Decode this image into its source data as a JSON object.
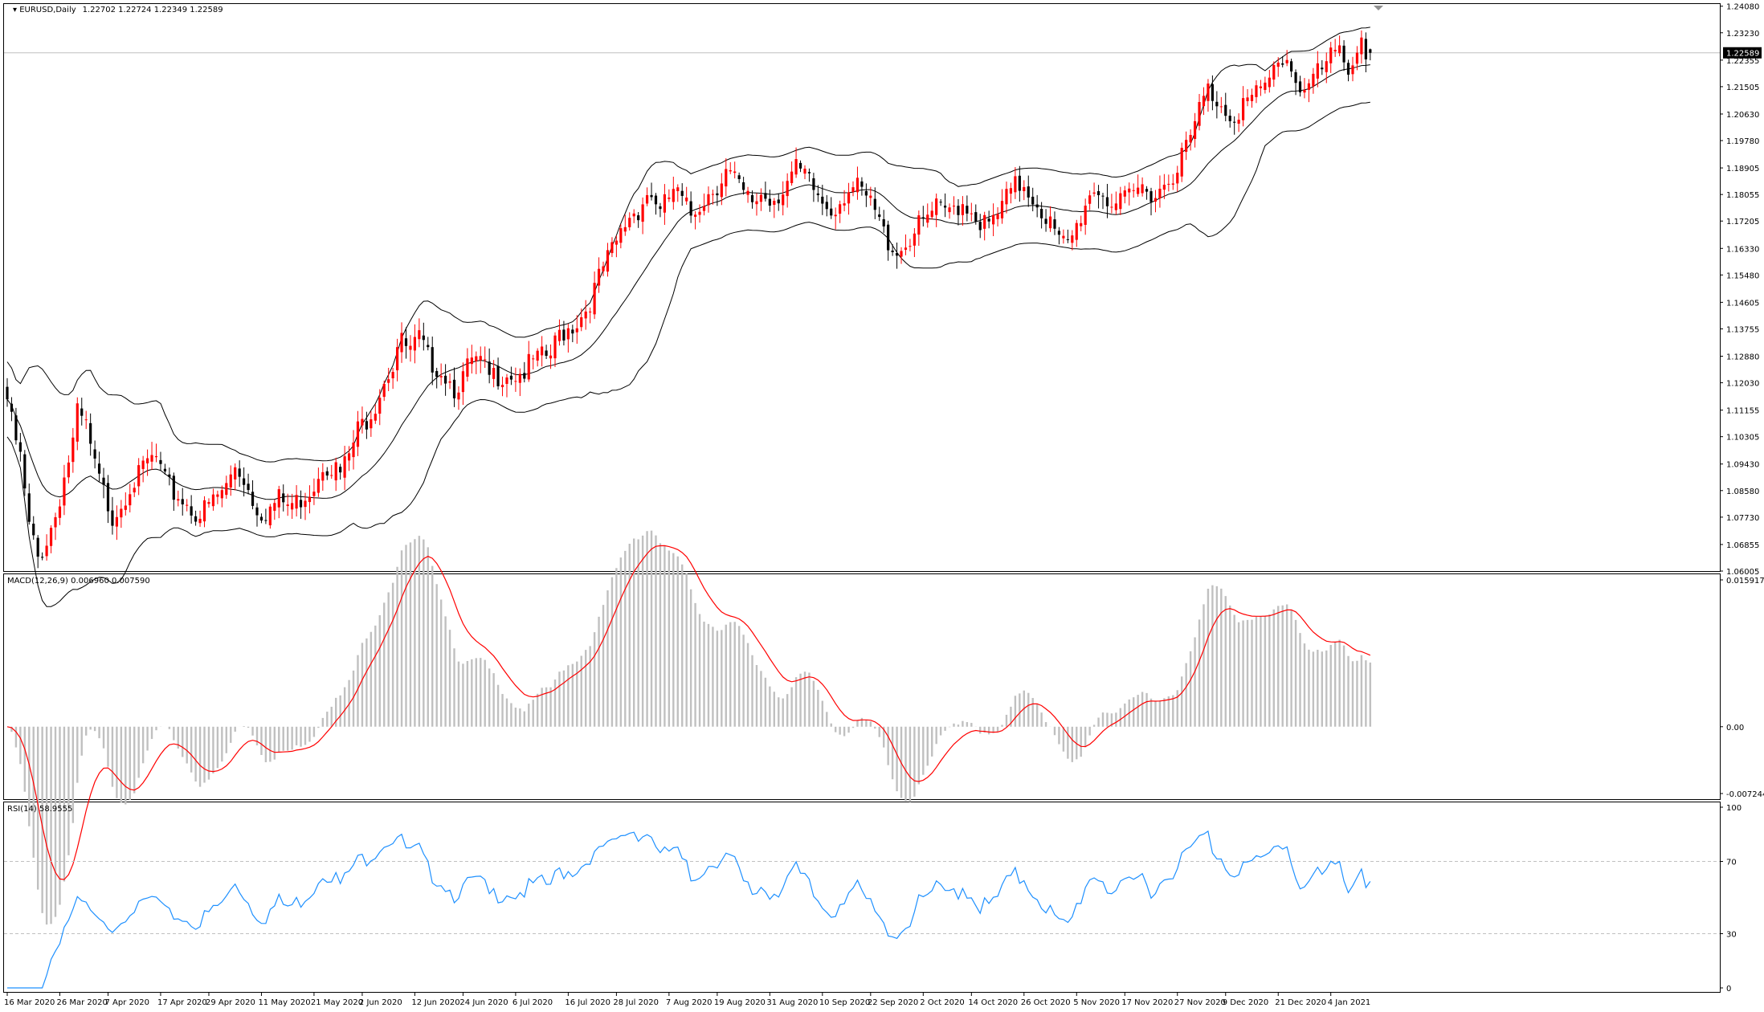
{
  "header": {
    "symbol": "EURUSD,Daily",
    "ohlc": "1.22702 1.22724 1.22349 1.22589"
  },
  "price_axis": {
    "labels": [
      "1.24080",
      "1.23230",
      "1.22355",
      "1.21505",
      "1.20630",
      "1.19780",
      "1.18905",
      "1.18055",
      "1.17205",
      "1.16330",
      "1.15480",
      "1.14605",
      "1.13755",
      "1.12880",
      "1.12030",
      "1.11155",
      "1.10305",
      "1.09430",
      "1.08580",
      "1.07730",
      "1.06855",
      "1.06005"
    ],
    "current_price_label": "1.22589"
  },
  "macd": {
    "title": "MACD(12,26,9) 0.006960 0.007590",
    "axis_labels": [
      "0.015917",
      "0.00",
      "-0.007244"
    ]
  },
  "rsi": {
    "title": "RSI(14) 58.9555",
    "axis_labels": [
      "100",
      "70",
      "30",
      "0"
    ]
  },
  "time_axis": {
    "labels": [
      "16 Mar 2020",
      "26 Mar 2020",
      "7 Apr 2020",
      "17 Apr 2020",
      "29 Apr 2020",
      "11 May 2020",
      "21 May 2020",
      "2 Jun 2020",
      "12 Jun 2020",
      "24 Jun 2020",
      "6 Jul 2020",
      "16 Jul 2020",
      "28 Jul 2020",
      "7 Aug 2020",
      "19 Aug 2020",
      "31 Aug 2020",
      "10 Sep 2020",
      "22 Sep 2020",
      "2 Oct 2020",
      "14 Oct 2020",
      "26 Oct 2020",
      "5 Nov 2020",
      "17 Nov 2020",
      "27 Nov 2020",
      "9 Dec 2020",
      "21 Dec 2020",
      "4 Jan 2021"
    ]
  },
  "colors": {
    "bull": "#ff0000",
    "bear": "#000000",
    "bands": "#000000",
    "histogram": "#c0c0c0",
    "macd_signal": "#ff0000",
    "rsi_line": "#1e90ff",
    "level_lines": "#c0c0c0",
    "current_price_line": "#c0c0c0"
  },
  "chart_data": [
    {
      "type": "candlestick",
      "title": "EURUSD,Daily",
      "ylim": [
        1.06005,
        1.2415
      ],
      "close_anchors": [
        [
          0,
          1.115
        ],
        [
          3,
          1.098
        ],
        [
          5,
          1.076
        ],
        [
          7,
          1.066
        ],
        [
          9,
          1.072
        ],
        [
          11,
          1.08
        ],
        [
          13,
          1.092
        ],
        [
          15,
          1.103
        ],
        [
          16,
          1.112
        ],
        [
          18,
          1.108
        ],
        [
          20,
          1.095
        ],
        [
          22,
          1.087
        ],
        [
          24,
          1.08
        ],
        [
          26,
          1.084
        ],
        [
          28,
          1.09
        ],
        [
          30,
          1.092
        ],
        [
          32,
          1.097
        ],
        [
          34,
          1.098
        ],
        [
          36,
          1.09
        ],
        [
          38,
          1.087
        ],
        [
          40,
          1.085
        ],
        [
          42,
          1.082
        ],
        [
          44,
          1.08
        ],
        [
          46,
          1.083
        ],
        [
          48,
          1.086
        ],
        [
          50,
          1.089
        ],
        [
          52,
          1.096
        ],
        [
          54,
          1.092
        ],
        [
          56,
          1.085
        ],
        [
          58,
          1.081
        ],
        [
          60,
          1.082
        ],
        [
          62,
          1.085
        ],
        [
          64,
          1.083
        ],
        [
          66,
          1.084
        ],
        [
          68,
          1.087
        ],
        [
          70,
          1.09
        ],
        [
          72,
          1.097
        ],
        [
          74,
          1.096
        ],
        [
          76,
          1.093
        ],
        [
          78,
          1.099
        ],
        [
          80,
          1.107
        ],
        [
          82,
          1.111
        ],
        [
          84,
          1.116
        ],
        [
          86,
          1.124
        ],
        [
          88,
          1.128
        ],
        [
          89,
          1.134
        ],
        [
          90,
          1.135
        ],
        [
          92,
          1.132
        ],
        [
          94,
          1.136
        ],
        [
          96,
          1.13
        ],
        [
          98,
          1.128
        ],
        [
          100,
          1.125
        ],
        [
          102,
          1.121
        ],
        [
          104,
          1.124
        ],
        [
          106,
          1.129
        ],
        [
          108,
          1.128
        ],
        [
          110,
          1.124
        ],
        [
          112,
          1.125
        ],
        [
          114,
          1.126
        ],
        [
          116,
          1.125
        ],
        [
          118,
          1.126
        ],
        [
          120,
          1.129
        ],
        [
          122,
          1.13
        ],
        [
          124,
          1.131
        ],
        [
          126,
          1.138
        ],
        [
          128,
          1.14
        ],
        [
          130,
          1.142
        ],
        [
          132,
          1.146
        ],
        [
          134,
          1.152
        ],
        [
          136,
          1.159
        ],
        [
          138,
          1.164
        ],
        [
          140,
          1.17
        ],
        [
          142,
          1.176
        ],
        [
          144,
          1.178
        ],
        [
          146,
          1.183
        ],
        [
          148,
          1.181
        ],
        [
          149,
          1.176
        ],
        [
          150,
          1.179
        ],
        [
          152,
          1.184
        ],
        [
          154,
          1.18
        ],
        [
          156,
          1.176
        ],
        [
          158,
          1.18
        ],
        [
          160,
          1.183
        ],
        [
          162,
          1.186
        ],
        [
          164,
          1.19
        ],
        [
          166,
          1.187
        ],
        [
          168,
          1.182
        ],
        [
          170,
          1.18
        ],
        [
          172,
          1.183
        ],
        [
          174,
          1.181
        ],
        [
          176,
          1.183
        ],
        [
          178,
          1.187
        ],
        [
          180,
          1.19
        ],
        [
          182,
          1.188
        ],
        [
          184,
          1.184
        ],
        [
          186,
          1.18
        ],
        [
          188,
          1.178
        ],
        [
          190,
          1.181
        ],
        [
          192,
          1.185
        ],
        [
          194,
          1.184
        ],
        [
          196,
          1.181
        ],
        [
          198,
          1.177
        ],
        [
          200,
          1.17
        ],
        [
          202,
          1.166
        ],
        [
          204,
          1.165
        ],
        [
          206,
          1.169
        ],
        [
          208,
          1.172
        ],
        [
          210,
          1.175
        ],
        [
          212,
          1.178
        ],
        [
          214,
          1.176
        ],
        [
          216,
          1.179
        ],
        [
          218,
          1.18
        ],
        [
          220,
          1.178
        ],
        [
          222,
          1.174
        ],
        [
          224,
          1.172
        ],
        [
          226,
          1.176
        ],
        [
          228,
          1.181
        ],
        [
          230,
          1.185
        ],
        [
          232,
          1.186
        ],
        [
          234,
          1.182
        ],
        [
          236,
          1.178
        ],
        [
          238,
          1.173
        ],
        [
          240,
          1.167
        ],
        [
          242,
          1.166
        ],
        [
          244,
          1.172
        ],
        [
          246,
          1.18
        ],
        [
          248,
          1.185
        ],
        [
          250,
          1.183
        ],
        [
          252,
          1.18
        ],
        [
          254,
          1.179
        ],
        [
          256,
          1.181
        ],
        [
          258,
          1.184
        ],
        [
          260,
          1.185
        ],
        [
          262,
          1.183
        ],
        [
          264,
          1.186
        ],
        [
          266,
          1.19
        ],
        [
          268,
          1.195
        ],
        [
          270,
          1.2
        ],
        [
          272,
          1.21
        ],
        [
          274,
          1.216
        ],
        [
          276,
          1.213
        ],
        [
          278,
          1.21
        ],
        [
          280,
          1.208
        ],
        [
          282,
          1.212
        ],
        [
          284,
          1.213
        ],
        [
          286,
          1.215
        ],
        [
          288,
          1.219
        ],
        [
          290,
          1.226
        ],
        [
          292,
          1.226
        ],
        [
          294,
          1.22
        ],
        [
          296,
          1.216
        ],
        [
          298,
          1.22
        ],
        [
          300,
          1.222
        ],
        [
          302,
          1.226
        ],
        [
          304,
          1.228
        ],
        [
          306,
          1.224
        ],
        [
          308,
          1.229
        ],
        [
          309,
          1.233
        ],
        [
          310,
          1.228
        ],
        [
          311,
          1.22589
        ]
      ]
    },
    {
      "type": "line",
      "title": "MACD(12,26,9) 0.006960 0.007590",
      "ylim": [
        -0.007244,
        0.015917
      ],
      "last_main": 0.00696,
      "last_signal": 0.00759
    },
    {
      "type": "line",
      "title": "RSI(14) 58.9555",
      "ylim": [
        0,
        100
      ],
      "levels": [
        70,
        30
      ],
      "last_value": 58.9555
    }
  ]
}
